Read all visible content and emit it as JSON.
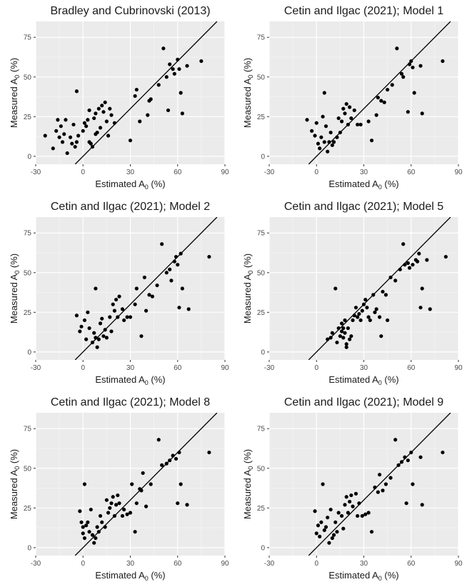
{
  "chart_data": [
    {
      "type": "scatter",
      "title": "Bradley and Cubrinovski (2013)",
      "xlabel": "Estimated A0 (%)",
      "ylabel": "Measured A0 (%)",
      "xlim": [
        -30,
        90
      ],
      "ylim": [
        -5,
        85
      ],
      "xticks": [
        "-30",
        "0",
        "30",
        "60",
        "90"
      ],
      "yticks": [
        "0",
        "25",
        "50",
        "75"
      ],
      "reference_line": "1:1",
      "grid": true,
      "points": [
        [
          -24,
          13
        ],
        [
          -19,
          5
        ],
        [
          -17,
          16
        ],
        [
          -16,
          23
        ],
        [
          -15,
          12
        ],
        [
          -14,
          19
        ],
        [
          -13,
          9
        ],
        [
          -12,
          14
        ],
        [
          -11,
          23
        ],
        [
          -10,
          2
        ],
        [
          -8,
          12
        ],
        [
          -7,
          8
        ],
        [
          -6,
          20
        ],
        [
          -5,
          6
        ],
        [
          -4,
          41
        ],
        [
          -4,
          9
        ],
        [
          -3,
          13
        ],
        [
          0,
          16
        ],
        [
          1,
          21
        ],
        [
          2,
          19
        ],
        [
          3,
          23
        ],
        [
          4,
          29
        ],
        [
          4,
          9
        ],
        [
          5,
          8
        ],
        [
          6,
          6
        ],
        [
          7,
          24
        ],
        [
          8,
          27
        ],
        [
          8,
          14
        ],
        [
          9,
          15
        ],
        [
          10,
          30
        ],
        [
          11,
          18
        ],
        [
          12,
          32
        ],
        [
          13,
          28
        ],
        [
          14,
          34
        ],
        [
          15,
          22
        ],
        [
          16,
          13
        ],
        [
          17,
          30
        ],
        [
          18,
          26
        ],
        [
          20,
          21
        ],
        [
          30,
          10
        ],
        [
          33,
          38
        ],
        [
          34,
          42
        ],
        [
          36,
          22
        ],
        [
          41,
          26
        ],
        [
          42,
          35
        ],
        [
          43,
          36
        ],
        [
          48,
          45
        ],
        [
          51,
          68
        ],
        [
          53,
          50
        ],
        [
          54,
          29
        ],
        [
          55,
          58
        ],
        [
          57,
          55
        ],
        [
          58,
          52
        ],
        [
          60,
          61
        ],
        [
          61,
          55
        ],
        [
          62,
          40
        ],
        [
          63,
          27
        ],
        [
          66,
          57
        ],
        [
          75,
          60
        ]
      ]
    },
    {
      "type": "scatter",
      "title": "Cetin and Ilgac (2021); Model 1",
      "xlabel": "Estimated A0 (%)",
      "ylabel": "Measured A0 (%)",
      "xlim": [
        -30,
        90
      ],
      "ylim": [
        -5,
        85
      ],
      "xticks": [
        "-30",
        "0",
        "30",
        "60",
        "90"
      ],
      "yticks": [
        "0",
        "25",
        "50",
        "75"
      ],
      "reference_line": "1:1",
      "grid": true,
      "points": [
        [
          -6,
          23
        ],
        [
          -3,
          16
        ],
        [
          -1,
          13
        ],
        [
          0,
          21
        ],
        [
          1,
          8
        ],
        [
          2,
          5
        ],
        [
          3,
          12
        ],
        [
          4,
          25
        ],
        [
          5,
          40
        ],
        [
          5,
          9
        ],
        [
          6,
          19
        ],
        [
          7,
          3
        ],
        [
          8,
          9
        ],
        [
          9,
          15
        ],
        [
          10,
          7
        ],
        [
          11,
          9
        ],
        [
          13,
          12
        ],
        [
          14,
          24
        ],
        [
          15,
          15
        ],
        [
          16,
          22
        ],
        [
          17,
          30
        ],
        [
          18,
          27
        ],
        [
          19,
          33
        ],
        [
          20,
          20
        ],
        [
          21,
          31
        ],
        [
          22,
          24
        ],
        [
          24,
          29
        ],
        [
          26,
          20
        ],
        [
          28,
          20
        ],
        [
          33,
          22
        ],
        [
          35,
          10
        ],
        [
          38,
          26
        ],
        [
          39,
          37
        ],
        [
          41,
          35
        ],
        [
          43,
          34
        ],
        [
          45,
          42
        ],
        [
          48,
          45
        ],
        [
          51,
          68
        ],
        [
          54,
          52
        ],
        [
          55,
          50
        ],
        [
          58,
          28
        ],
        [
          59,
          58
        ],
        [
          60,
          60
        ],
        [
          61,
          56
        ],
        [
          62,
          40
        ],
        [
          66,
          57
        ],
        [
          67,
          27
        ],
        [
          80,
          60
        ]
      ]
    },
    {
      "type": "scatter",
      "title": "Cetin and Ilgac (2021); Model 2",
      "xlabel": "Estimated A0 (%)",
      "ylabel": "Measured A0 (%)",
      "xlim": [
        -30,
        90
      ],
      "ylim": [
        -5,
        85
      ],
      "xticks": [
        "-30",
        "0",
        "30",
        "60",
        "90"
      ],
      "yticks": [
        "0",
        "25",
        "50",
        "75"
      ],
      "reference_line": "1:1",
      "grid": true,
      "points": [
        [
          -4,
          23
        ],
        [
          -2,
          13
        ],
        [
          -1,
          16
        ],
        [
          1,
          20
        ],
        [
          2,
          8
        ],
        [
          3,
          25
        ],
        [
          4,
          15
        ],
        [
          6,
          6
        ],
        [
          7,
          12
        ],
        [
          8,
          40
        ],
        [
          8,
          9
        ],
        [
          9,
          3
        ],
        [
          10,
          8
        ],
        [
          11,
          18
        ],
        [
          12,
          21
        ],
        [
          13,
          10
        ],
        [
          14,
          14
        ],
        [
          15,
          9
        ],
        [
          17,
          22
        ],
        [
          18,
          13
        ],
        [
          19,
          30
        ],
        [
          20,
          26
        ],
        [
          21,
          33
        ],
        [
          22,
          22
        ],
        [
          23,
          35
        ],
        [
          25,
          27
        ],
        [
          26,
          20
        ],
        [
          28,
          22
        ],
        [
          30,
          22
        ],
        [
          33,
          30
        ],
        [
          34,
          40
        ],
        [
          37,
          10
        ],
        [
          39,
          47
        ],
        [
          40,
          26
        ],
        [
          42,
          36
        ],
        [
          44,
          35
        ],
        [
          47,
          42
        ],
        [
          50,
          68
        ],
        [
          53,
          50
        ],
        [
          55,
          52
        ],
        [
          56,
          45
        ],
        [
          58,
          57
        ],
        [
          59,
          60
        ],
        [
          60,
          55
        ],
        [
          61,
          28
        ],
        [
          62,
          62
        ],
        [
          63,
          40
        ],
        [
          67,
          27
        ],
        [
          80,
          60
        ]
      ]
    },
    {
      "type": "scatter",
      "title": "Cetin and Ilgac (2021); Model 5",
      "xlabel": "Estimated A0 (%)",
      "ylabel": "Measured A0 (%)",
      "xlim": [
        -30,
        90
      ],
      "ylim": [
        -5,
        85
      ],
      "xticks": [
        "-30",
        "0",
        "30",
        "60",
        "90"
      ],
      "yticks": [
        "0",
        "25",
        "50",
        "75"
      ],
      "reference_line": "1:1",
      "grid": true,
      "points": [
        [
          7,
          8
        ],
        [
          9,
          9
        ],
        [
          10,
          12
        ],
        [
          12,
          40
        ],
        [
          13,
          6
        ],
        [
          14,
          15
        ],
        [
          15,
          10
        ],
        [
          16,
          13
        ],
        [
          16,
          18
        ],
        [
          17,
          15
        ],
        [
          17,
          9
        ],
        [
          18,
          12
        ],
        [
          18,
          20
        ],
        [
          19,
          5
        ],
        [
          19,
          3
        ],
        [
          20,
          15
        ],
        [
          21,
          8
        ],
        [
          22,
          10
        ],
        [
          23,
          20
        ],
        [
          24,
          23
        ],
        [
          25,
          28
        ],
        [
          26,
          22
        ],
        [
          27,
          24
        ],
        [
          28,
          20
        ],
        [
          29,
          26
        ],
        [
          30,
          30
        ],
        [
          31,
          33
        ],
        [
          32,
          28
        ],
        [
          33,
          22
        ],
        [
          34,
          20
        ],
        [
          36,
          36
        ],
        [
          37,
          25
        ],
        [
          38,
          27
        ],
        [
          40,
          22
        ],
        [
          41,
          10
        ],
        [
          42,
          38
        ],
        [
          44,
          36
        ],
        [
          45,
          20
        ],
        [
          47,
          47
        ],
        [
          50,
          45
        ],
        [
          53,
          52
        ],
        [
          55,
          68
        ],
        [
          56,
          55
        ],
        [
          58,
          56
        ],
        [
          59,
          53
        ],
        [
          61,
          55
        ],
        [
          63,
          58
        ],
        [
          64,
          57
        ],
        [
          65,
          62
        ],
        [
          66,
          28
        ],
        [
          67,
          40
        ],
        [
          70,
          58
        ],
        [
          72,
          27
        ],
        [
          82,
          60
        ]
      ]
    },
    {
      "type": "scatter",
      "title": "Cetin and Ilgac (2021); Model 8",
      "xlabel": "Estimated A0 (%)",
      "ylabel": "Measured A0 (%)",
      "xlim": [
        -30,
        90
      ],
      "ylim": [
        -5,
        85
      ],
      "xticks": [
        "-30",
        "0",
        "30",
        "60",
        "90"
      ],
      "yticks": [
        "0",
        "25",
        "50",
        "75"
      ],
      "reference_line": "1:1",
      "grid": true,
      "points": [
        [
          -2,
          23
        ],
        [
          -1,
          16
        ],
        [
          0,
          9
        ],
        [
          0,
          13
        ],
        [
          1,
          40
        ],
        [
          1,
          6
        ],
        [
          2,
          14
        ],
        [
          3,
          16
        ],
        [
          4,
          10
        ],
        [
          5,
          24
        ],
        [
          6,
          8
        ],
        [
          7,
          3
        ],
        [
          8,
          6
        ],
        [
          9,
          13
        ],
        [
          10,
          10
        ],
        [
          11,
          20
        ],
        [
          12,
          16
        ],
        [
          14,
          13
        ],
        [
          15,
          30
        ],
        [
          16,
          22
        ],
        [
          17,
          25
        ],
        [
          18,
          28
        ],
        [
          19,
          32
        ],
        [
          20,
          20
        ],
        [
          21,
          27
        ],
        [
          22,
          33
        ],
        [
          23,
          28
        ],
        [
          25,
          20
        ],
        [
          26,
          24
        ],
        [
          28,
          21
        ],
        [
          30,
          22
        ],
        [
          31,
          40
        ],
        [
          33,
          10
        ],
        [
          34,
          28
        ],
        [
          36,
          37
        ],
        [
          37,
          36
        ],
        [
          38,
          47
        ],
        [
          40,
          26
        ],
        [
          43,
          40
        ],
        [
          48,
          68
        ],
        [
          50,
          52
        ],
        [
          53,
          53
        ],
        [
          55,
          55
        ],
        [
          57,
          58
        ],
        [
          59,
          56
        ],
        [
          60,
          28
        ],
        [
          61,
          60
        ],
        [
          62,
          40
        ],
        [
          66,
          27
        ],
        [
          80,
          60
        ]
      ]
    },
    {
      "type": "scatter",
      "title": "Cetin and Ilgac (2021); Model 9",
      "xlabel": "Estimated A0 (%)",
      "ylabel": "Measured A0 (%)",
      "xlim": [
        -30,
        90
      ],
      "ylim": [
        -5,
        85
      ],
      "xticks": [
        "-30",
        "0",
        "30",
        "60",
        "90"
      ],
      "yticks": [
        "0",
        "25",
        "50",
        "75"
      ],
      "reference_line": "1:1",
      "grid": true,
      "points": [
        [
          -1,
          23
        ],
        [
          0,
          9
        ],
        [
          1,
          14
        ],
        [
          2,
          7
        ],
        [
          3,
          16
        ],
        [
          4,
          40
        ],
        [
          5,
          11
        ],
        [
          6,
          13
        ],
        [
          7,
          19
        ],
        [
          8,
          3
        ],
        [
          9,
          24
        ],
        [
          10,
          6
        ],
        [
          11,
          8
        ],
        [
          12,
          16
        ],
        [
          13,
          10
        ],
        [
          14,
          22
        ],
        [
          16,
          20
        ],
        [
          17,
          12
        ],
        [
          18,
          27
        ],
        [
          19,
          32
        ],
        [
          20,
          22
        ],
        [
          21,
          29
        ],
        [
          22,
          33
        ],
        [
          23,
          26
        ],
        [
          25,
          34
        ],
        [
          26,
          20
        ],
        [
          27,
          28
        ],
        [
          29,
          20
        ],
        [
          31,
          21
        ],
        [
          33,
          22
        ],
        [
          35,
          10
        ],
        [
          37,
          38
        ],
        [
          39,
          35
        ],
        [
          40,
          46
        ],
        [
          42,
          36
        ],
        [
          44,
          40
        ],
        [
          47,
          44
        ],
        [
          50,
          68
        ],
        [
          52,
          52
        ],
        [
          54,
          54
        ],
        [
          56,
          57
        ],
        [
          57,
          28
        ],
        [
          58,
          55
        ],
        [
          60,
          60
        ],
        [
          61,
          40
        ],
        [
          66,
          57
        ],
        [
          67,
          27
        ],
        [
          80,
          60
        ]
      ]
    }
  ]
}
